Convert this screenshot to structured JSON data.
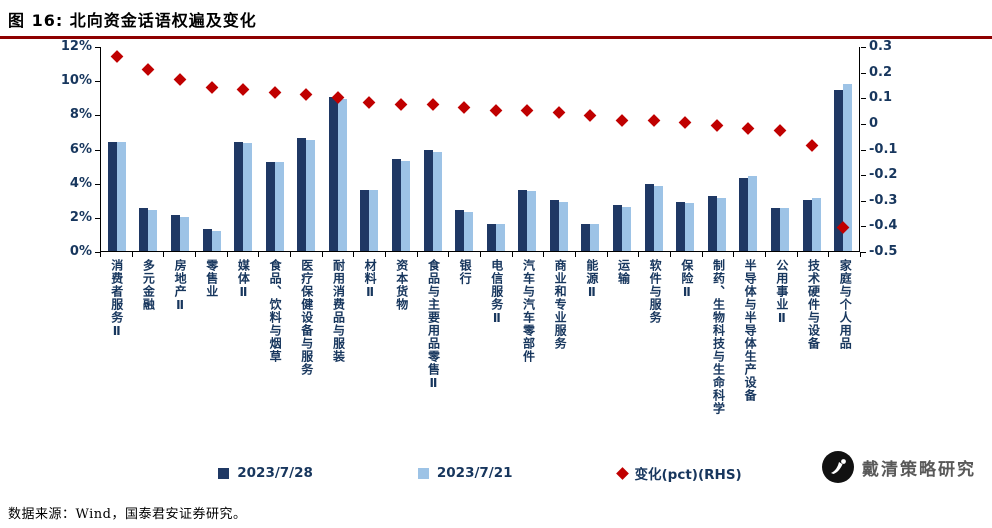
{
  "header": {
    "title": "图 16: 北向资金话语权遍及变化"
  },
  "chart_data": {
    "type": "bar",
    "title": "北向资金话语权遍及变化",
    "grid": false,
    "legend_position": "bottom",
    "categories": [
      "消费者服务Ⅱ",
      "多元金融",
      "房地产Ⅱ",
      "零售业",
      "媒体Ⅱ",
      "食品、饮料与烟草",
      "医疗保健设备与服务",
      "耐用消费品与服装",
      "材料Ⅱ",
      "资本货物",
      "食品与主要用品零售Ⅱ",
      "银行",
      "电信服务Ⅱ",
      "汽车与汽车零部件",
      "商业和专业服务",
      "能源Ⅱ",
      "运输",
      "软件与服务",
      "保险Ⅱ",
      "制药、生物科技与生命科学",
      "半导体与半导体生产设备",
      "公用事业Ⅱ",
      "技术硬件与设备",
      "家庭与个人用品"
    ],
    "series": [
      {
        "name": "2023/7/28",
        "color": "#1F3864",
        "values": [
          6.4,
          2.5,
          2.1,
          1.3,
          6.4,
          5.2,
          6.6,
          9.0,
          3.6,
          5.4,
          5.9,
          2.4,
          1.6,
          3.6,
          3.0,
          1.6,
          2.7,
          3.9,
          2.9,
          3.2,
          4.3,
          2.5,
          3.0,
          9.4
        ]
      },
      {
        "name": "2023/7/21",
        "color": "#9DC3E6",
        "values": [
          6.4,
          2.4,
          2.0,
          1.2,
          6.3,
          5.2,
          6.5,
          8.9,
          3.6,
          5.3,
          5.8,
          2.3,
          1.6,
          3.5,
          2.9,
          1.6,
          2.6,
          3.8,
          2.8,
          3.1,
          4.4,
          2.5,
          3.1,
          9.8
        ]
      }
    ],
    "change_series": {
      "name": "变化(pct)(RHS)",
      "type": "scatter-diamond",
      "color": "#C00000",
      "axis": "right",
      "values": [
        0.26,
        0.21,
        0.17,
        0.14,
        0.13,
        0.12,
        0.11,
        0.1,
        0.08,
        0.07,
        0.07,
        0.06,
        0.05,
        0.05,
        0.04,
        0.03,
        0.01,
        0.01,
        0.0,
        -0.01,
        -0.02,
        -0.03,
        -0.09,
        -0.41
      ]
    },
    "left_axis": {
      "min": 0,
      "max": 12,
      "ticks": [
        "0%",
        "2%",
        "4%",
        "6%",
        "8%",
        "10%",
        "12%"
      ]
    },
    "right_axis": {
      "min": -0.5,
      "max": 0.3,
      "ticks": [
        "-0.5",
        "-0.4",
        "-0.3",
        "-0.2",
        "-0.1",
        "0",
        "0.1",
        "0.2",
        "0.3"
      ]
    }
  },
  "watermark": {
    "text": "戴清策略研究"
  },
  "footer": {
    "source": "数据来源：Wind，国泰君安证券研究。"
  }
}
